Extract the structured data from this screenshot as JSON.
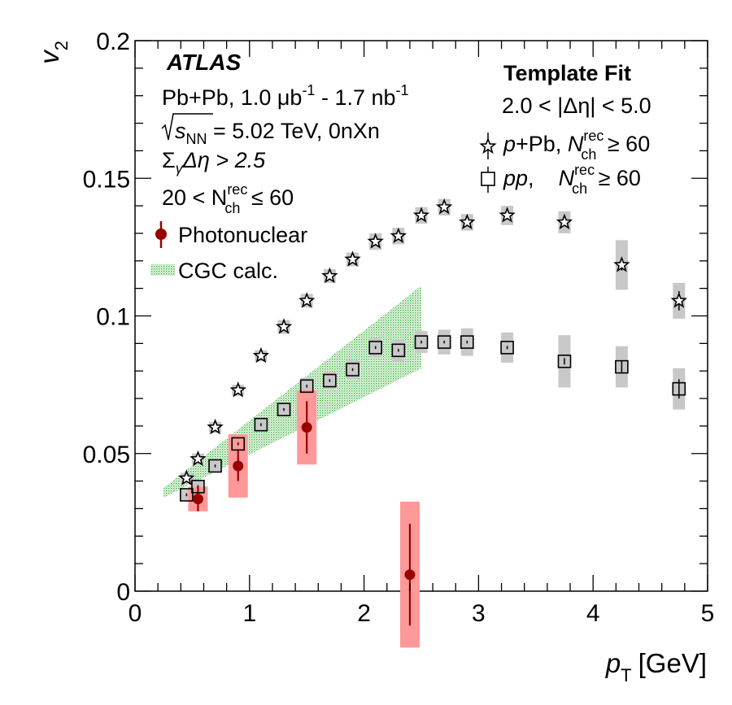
{
  "chart_data": {
    "type": "scatter",
    "xlabel_main": "p",
    "xlabel_sub": "T",
    "xlabel_unit": "[GeV]",
    "ylabel_main": "v",
    "ylabel_sub": "2",
    "xlim": [
      0,
      5
    ],
    "ylim": [
      0,
      0.2
    ],
    "x_ticks": [
      0,
      1,
      2,
      3,
      4,
      5
    ],
    "x_tick_labels": [
      "0",
      "1",
      "2",
      "3",
      "4",
      "5"
    ],
    "y_ticks": [
      0,
      0.05,
      0.1,
      0.15,
      0.2
    ],
    "y_tick_labels": [
      "0",
      "0.05",
      "0.1",
      "0.15",
      "0.2"
    ],
    "grid": false,
    "series": [
      {
        "name": "p+Pb",
        "marker": "star",
        "syst_color": "#c8c8c8",
        "x": [
          0.45,
          0.55,
          0.7,
          0.9,
          1.1,
          1.3,
          1.5,
          1.7,
          1.9,
          2.1,
          2.3,
          2.5,
          2.7,
          2.9,
          3.25,
          3.75,
          4.25,
          4.75
        ],
        "y": [
          0.041,
          0.048,
          0.0595,
          0.073,
          0.0855,
          0.096,
          0.1055,
          0.1145,
          0.1205,
          0.127,
          0.129,
          0.1365,
          0.1395,
          0.134,
          0.1365,
          0.134,
          0.1185,
          0.1055
        ],
        "syst": [
          0.002,
          0.002,
          0.002,
          0.002,
          0.002,
          0.0025,
          0.0025,
          0.0025,
          0.0025,
          0.003,
          0.003,
          0.003,
          0.003,
          0.003,
          0.0035,
          0.004,
          0.009,
          0.0065
        ],
        "stat": [
          0.0005,
          0.0005,
          0.0005,
          0.0005,
          0.0005,
          0.0005,
          0.0005,
          0.0005,
          0.0005,
          0.0005,
          0.0005,
          0.0005,
          0.0005,
          0.0006,
          0.0008,
          0.001,
          0.002,
          0.0035
        ]
      },
      {
        "name": "pp",
        "marker": "square",
        "syst_color": "#c8c8c8",
        "x": [
          0.45,
          0.55,
          0.7,
          0.9,
          1.1,
          1.3,
          1.5,
          1.7,
          1.9,
          2.1,
          2.3,
          2.5,
          2.7,
          2.9,
          3.25,
          3.75,
          4.25,
          4.75
        ],
        "y": [
          0.035,
          0.038,
          0.0455,
          0.0535,
          0.0605,
          0.066,
          0.0745,
          0.0765,
          0.0805,
          0.0885,
          0.0875,
          0.0905,
          0.0905,
          0.0905,
          0.0885,
          0.0835,
          0.0815,
          0.0735
        ],
        "syst": [
          0.002,
          0.002,
          0.0022,
          0.0025,
          0.0025,
          0.0025,
          0.003,
          0.003,
          0.0035,
          0.0035,
          0.004,
          0.004,
          0.0045,
          0.005,
          0.0055,
          0.0095,
          0.0075,
          0.0075
        ],
        "stat": [
          0.0005,
          0.0005,
          0.0005,
          0.0005,
          0.0005,
          0.0005,
          0.0005,
          0.0005,
          0.0005,
          0.0005,
          0.0005,
          0.0005,
          0.0005,
          0.0005,
          0.0006,
          0.0012,
          0.002,
          0.0035
        ]
      },
      {
        "name": "Photonuclear",
        "marker": "circle",
        "color": "#990000",
        "syst_color": "#ff9999",
        "x": [
          0.55,
          0.9,
          1.5,
          2.4
        ],
        "y": [
          0.0335,
          0.0455,
          0.0595,
          0.006
        ],
        "syst": [
          0.0045,
          0.0115,
          0.0135,
          0.0265
        ],
        "stat": [
          0.0045,
          0.0055,
          0.0095,
          0.0185
        ]
      }
    ],
    "band": {
      "name": "CGC calc.",
      "color": "#33aa33",
      "x": [
        0.25,
        2.5
      ],
      "upper": [
        0.0375,
        0.111
      ],
      "lower": [
        0.034,
        0.081
      ]
    },
    "legend_left": {
      "experiment": "ATLAS",
      "line1_a": "Pb+Pb, 1.0 ",
      "line1_mu": "μb",
      "line1_exp1": "-1",
      "line1_b": " - 1.7 nb",
      "line1_exp2": "-1",
      "line2_s": "s",
      "line2_sub": "NN",
      "line2_rest": " = 5.02 TeV, 0nXn",
      "line3_sigma": "Σ",
      "line3_gamma": "γ",
      "line3_rest": "Δη > 2.5",
      "line4_a": "20 < N",
      "line4_sup": "rec",
      "line4_sub": "ch",
      "line4_b": " ≤ 60",
      "entry_photonuclear": "Photonuclear",
      "entry_cgc": "CGC calc."
    },
    "legend_right": {
      "title": "Template Fit",
      "range": "2.0 < |Δη| < 5.0",
      "ppb_a": "p",
      "ppb_b": "+Pb, ",
      "ppb_n": "N",
      "ppb_sup": "rec",
      "ppb_sub": "ch",
      "ppb_c": " ≥ 60",
      "pp_a": "pp",
      "pp_b": ",    ",
      "pp_n": "N",
      "pp_sup": "rec",
      "pp_sub": "ch",
      "pp_c": " ≥ 60"
    }
  }
}
